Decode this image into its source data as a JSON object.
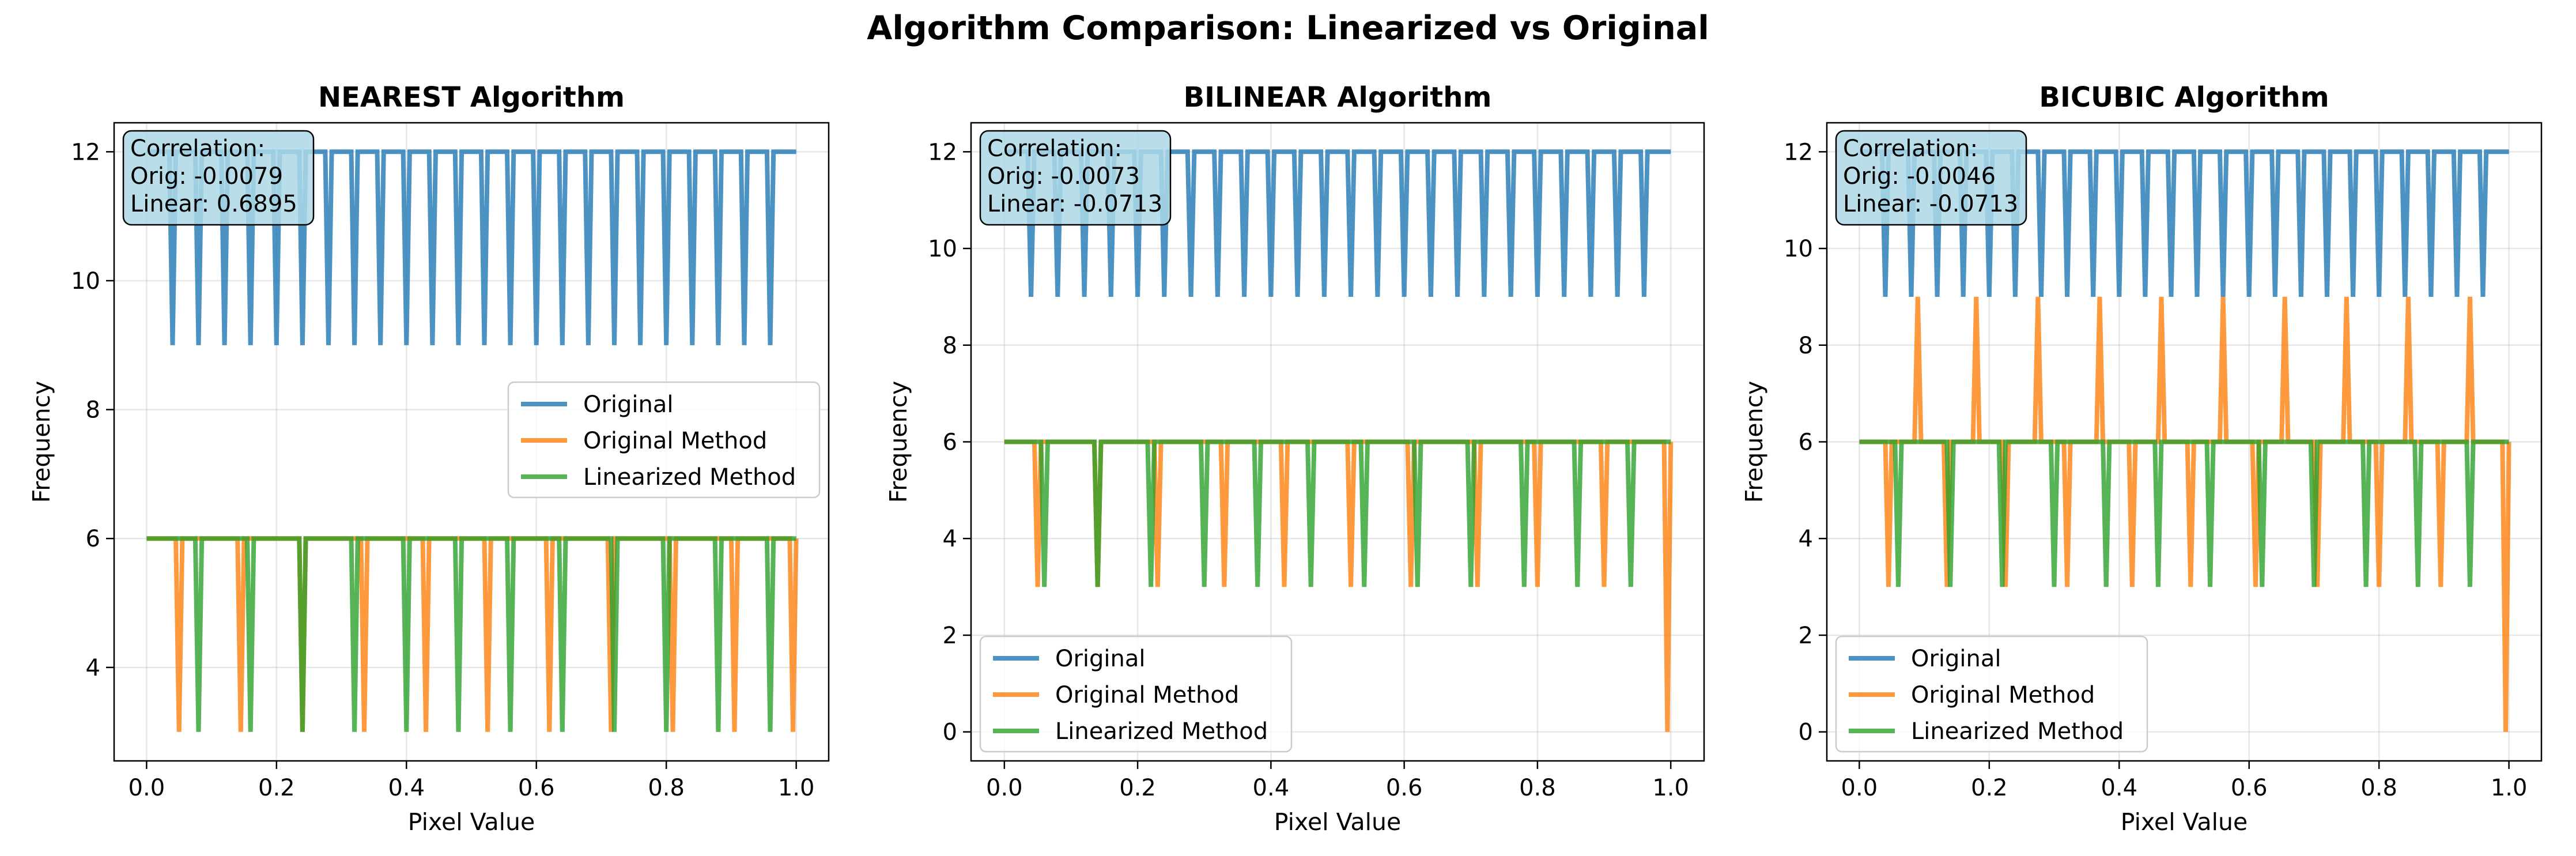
{
  "figure": {
    "title": "Algorithm Comparison: Linearized vs Original"
  },
  "colors": {
    "original": "#1f77b4",
    "original_method": "#ff7f0e",
    "linearized_method": "#2ca02c",
    "corr_box_fill": "#add8e6"
  },
  "chart_data": [
    {
      "type": "line",
      "title": "NEAREST Algorithm",
      "xlabel": "Pixel Value",
      "ylabel": "Frequency",
      "xlim": [
        -0.05,
        1.05
      ],
      "ylim": [
        2.55,
        12.45
      ],
      "xticks": [
        0.0,
        0.2,
        0.4,
        0.6,
        0.8,
        1.0
      ],
      "xtick_labels": [
        "0.0",
        "0.2",
        "0.4",
        "0.6",
        "0.8",
        "1.0"
      ],
      "yticks": [
        4,
        6,
        8,
        10,
        12
      ],
      "ytick_labels": [
        "4",
        "6",
        "8",
        "10",
        "12"
      ],
      "grid": true,
      "legend_position": "center-right",
      "annotation": [
        "Correlation:",
        "Orig: -0.0079",
        "Linear: 0.6895"
      ],
      "series": [
        {
          "name": "Original",
          "color": "#1f77b4",
          "base": 12,
          "dips": [
            [
              0.04,
              9
            ],
            [
              0.08,
              9
            ],
            [
              0.12,
              9
            ],
            [
              0.16,
              9
            ],
            [
              0.2,
              9
            ],
            [
              0.24,
              9
            ],
            [
              0.28,
              9
            ],
            [
              0.32,
              9
            ],
            [
              0.36,
              9
            ],
            [
              0.4,
              9
            ],
            [
              0.44,
              9
            ],
            [
              0.48,
              9
            ],
            [
              0.52,
              9
            ],
            [
              0.56,
              9
            ],
            [
              0.6,
              9
            ],
            [
              0.64,
              9
            ],
            [
              0.68,
              9
            ],
            [
              0.72,
              9
            ],
            [
              0.76,
              9
            ],
            [
              0.8,
              9
            ],
            [
              0.84,
              9
            ],
            [
              0.88,
              9
            ],
            [
              0.92,
              9
            ],
            [
              0.96,
              9
            ]
          ]
        },
        {
          "name": "Original Method",
          "color": "#ff7f0e",
          "base": 6,
          "dips": [
            [
              0.05,
              3
            ],
            [
              0.145,
              3
            ],
            [
              0.24,
              3
            ],
            [
              0.335,
              3
            ],
            [
              0.43,
              3
            ],
            [
              0.525,
              3
            ],
            [
              0.62,
              3
            ],
            [
              0.715,
              3
            ],
            [
              0.81,
              3
            ],
            [
              0.905,
              3
            ],
            [
              0.995,
              3
            ]
          ]
        },
        {
          "name": "Linearized Method",
          "color": "#2ca02c",
          "base": 6,
          "dips": [
            [
              0.08,
              3
            ],
            [
              0.16,
              3
            ],
            [
              0.24,
              3
            ],
            [
              0.32,
              3
            ],
            [
              0.4,
              3
            ],
            [
              0.48,
              3
            ],
            [
              0.56,
              3
            ],
            [
              0.64,
              3
            ],
            [
              0.72,
              3
            ],
            [
              0.8,
              3
            ],
            [
              0.88,
              3
            ],
            [
              0.96,
              3
            ]
          ]
        }
      ]
    },
    {
      "type": "line",
      "title": "BILINEAR Algorithm",
      "xlabel": "Pixel Value",
      "ylabel": "Frequency",
      "xlim": [
        -0.05,
        1.05
      ],
      "ylim": [
        -0.6,
        12.6
      ],
      "xticks": [
        0.0,
        0.2,
        0.4,
        0.6,
        0.8,
        1.0
      ],
      "xtick_labels": [
        "0.0",
        "0.2",
        "0.4",
        "0.6",
        "0.8",
        "1.0"
      ],
      "yticks": [
        0,
        2,
        4,
        6,
        8,
        10,
        12
      ],
      "ytick_labels": [
        "0",
        "2",
        "4",
        "6",
        "8",
        "10",
        "12"
      ],
      "grid": true,
      "legend_position": "lower-left",
      "annotation": [
        "Correlation:",
        "Orig: -0.0073",
        "Linear: -0.0713"
      ],
      "series": [
        {
          "name": "Original",
          "color": "#1f77b4",
          "base": 12,
          "dips": [
            [
              0.04,
              9
            ],
            [
              0.08,
              9
            ],
            [
              0.12,
              9
            ],
            [
              0.16,
              9
            ],
            [
              0.2,
              9
            ],
            [
              0.24,
              9
            ],
            [
              0.28,
              9
            ],
            [
              0.32,
              9
            ],
            [
              0.36,
              9
            ],
            [
              0.4,
              9
            ],
            [
              0.44,
              9
            ],
            [
              0.48,
              9
            ],
            [
              0.52,
              9
            ],
            [
              0.56,
              9
            ],
            [
              0.6,
              9
            ],
            [
              0.64,
              9
            ],
            [
              0.68,
              9
            ],
            [
              0.72,
              9
            ],
            [
              0.76,
              9
            ],
            [
              0.8,
              9
            ],
            [
              0.84,
              9
            ],
            [
              0.88,
              9
            ],
            [
              0.92,
              9
            ],
            [
              0.96,
              9
            ]
          ]
        },
        {
          "name": "Original Method",
          "color": "#ff7f0e",
          "base": 6,
          "dips": [
            [
              0.05,
              3
            ],
            [
              0.14,
              3
            ],
            [
              0.23,
              3
            ],
            [
              0.33,
              3
            ],
            [
              0.42,
              3
            ],
            [
              0.52,
              3
            ],
            [
              0.61,
              3
            ],
            [
              0.71,
              3
            ],
            [
              0.8,
              3
            ],
            [
              0.9,
              3
            ],
            [
              0.995,
              0
            ]
          ]
        },
        {
          "name": "Linearized Method",
          "color": "#2ca02c",
          "base": 6,
          "dips": [
            [
              0.06,
              3
            ],
            [
              0.14,
              3
            ],
            [
              0.22,
              3
            ],
            [
              0.3,
              3
            ],
            [
              0.38,
              3
            ],
            [
              0.46,
              3
            ],
            [
              0.54,
              3
            ],
            [
              0.62,
              3
            ],
            [
              0.7,
              3
            ],
            [
              0.78,
              3
            ],
            [
              0.86,
              3
            ],
            [
              0.94,
              3
            ]
          ]
        }
      ]
    },
    {
      "type": "line",
      "title": "BICUBIC Algorithm",
      "xlabel": "Pixel Value",
      "ylabel": "Frequency",
      "xlim": [
        -0.05,
        1.05
      ],
      "ylim": [
        -0.6,
        12.6
      ],
      "xticks": [
        0.0,
        0.2,
        0.4,
        0.6,
        0.8,
        1.0
      ],
      "xtick_labels": [
        "0.0",
        "0.2",
        "0.4",
        "0.6",
        "0.8",
        "1.0"
      ],
      "yticks": [
        0,
        2,
        4,
        6,
        8,
        10,
        12
      ],
      "ytick_labels": [
        "0",
        "2",
        "4",
        "6",
        "8",
        "10",
        "12"
      ],
      "grid": true,
      "legend_position": "lower-left",
      "annotation": [
        "Correlation:",
        "Orig: -0.0046",
        "Linear: -0.0713"
      ],
      "series": [
        {
          "name": "Original",
          "color": "#1f77b4",
          "base": 12,
          "dips": [
            [
              0.04,
              9
            ],
            [
              0.08,
              9
            ],
            [
              0.12,
              9
            ],
            [
              0.16,
              9
            ],
            [
              0.2,
              9
            ],
            [
              0.24,
              9
            ],
            [
              0.28,
              9
            ],
            [
              0.32,
              9
            ],
            [
              0.36,
              9
            ],
            [
              0.4,
              9
            ],
            [
              0.44,
              9
            ],
            [
              0.48,
              9
            ],
            [
              0.52,
              9
            ],
            [
              0.56,
              9
            ],
            [
              0.6,
              9
            ],
            [
              0.64,
              9
            ],
            [
              0.68,
              9
            ],
            [
              0.72,
              9
            ],
            [
              0.76,
              9
            ],
            [
              0.8,
              9
            ],
            [
              0.84,
              9
            ],
            [
              0.88,
              9
            ],
            [
              0.92,
              9
            ],
            [
              0.96,
              9
            ]
          ]
        },
        {
          "name": "Original Method",
          "color": "#ff7f0e",
          "base": 6,
          "dips": [
            [
              0.045,
              3
            ],
            [
              0.09,
              9
            ],
            [
              0.135,
              3
            ],
            [
              0.18,
              9
            ],
            [
              0.225,
              3
            ],
            [
              0.275,
              9
            ],
            [
              0.32,
              3
            ],
            [
              0.37,
              9
            ],
            [
              0.42,
              3
            ],
            [
              0.465,
              9
            ],
            [
              0.51,
              3
            ],
            [
              0.56,
              9
            ],
            [
              0.61,
              3
            ],
            [
              0.655,
              9
            ],
            [
              0.705,
              3
            ],
            [
              0.75,
              9
            ],
            [
              0.8,
              3
            ],
            [
              0.845,
              9
            ],
            [
              0.895,
              3
            ],
            [
              0.94,
              9
            ],
            [
              0.995,
              0
            ]
          ]
        },
        {
          "name": "Linearized Method",
          "color": "#2ca02c",
          "base": 6,
          "dips": [
            [
              0.06,
              3
            ],
            [
              0.14,
              3
            ],
            [
              0.22,
              3
            ],
            [
              0.3,
              3
            ],
            [
              0.38,
              3
            ],
            [
              0.46,
              3
            ],
            [
              0.54,
              3
            ],
            [
              0.62,
              3
            ],
            [
              0.7,
              3
            ],
            [
              0.78,
              3
            ],
            [
              0.86,
              3
            ],
            [
              0.94,
              3
            ]
          ]
        }
      ]
    }
  ]
}
